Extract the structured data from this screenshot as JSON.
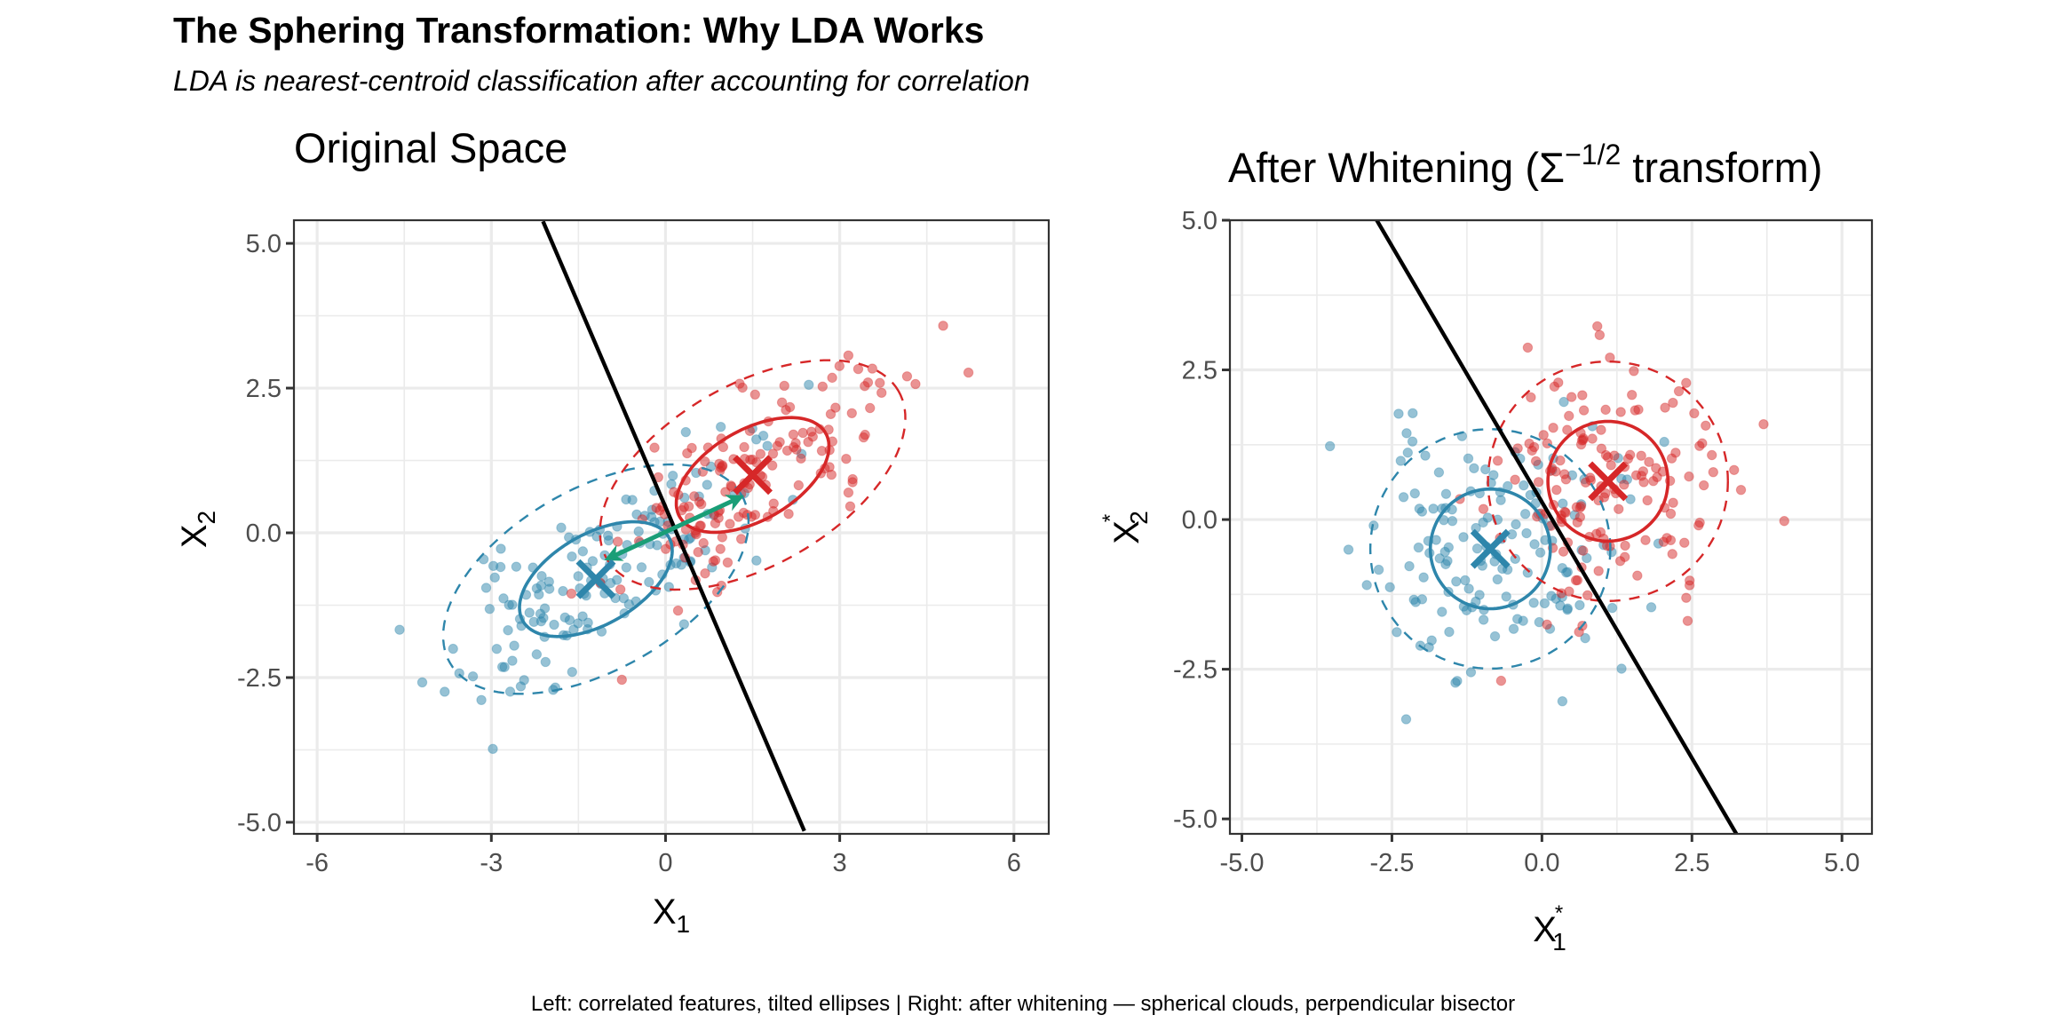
{
  "figure": {
    "title": "The Sphering Transformation: Why LDA Works",
    "subtitle": "LDA is nearest-centroid classification after accounting for correlation",
    "caption": "Left: correlated features, tilted ellipses | Right: after whitening — spherical clouds, perpendicular bisector"
  },
  "colors": {
    "class_a": "#D62728",
    "class_b": "#2E86AB",
    "arrow": "#1A9E77",
    "boundary": "#000000",
    "grid": "#EBEBEB",
    "panel_border": "#333333",
    "tick_text": "#4D4D4D"
  },
  "chart_data": [
    {
      "type": "scatter",
      "panel": "left",
      "title": "Original Space",
      "xlabel": {
        "base": "X",
        "sub": "1"
      },
      "ylabel": {
        "base": "X",
        "sub": "2"
      },
      "xlim": [
        -6.4,
        6.6
      ],
      "ylim": [
        -5.2,
        5.4
      ],
      "xticks": [
        -6,
        -3,
        0,
        3,
        6
      ],
      "xtick_labels": [
        "-6",
        "-3",
        "0",
        "3",
        "6"
      ],
      "yticks": [
        -5,
        -2.5,
        0,
        2.5,
        5
      ],
      "ytick_labels": [
        "-5.0",
        "-2.5",
        "0.0",
        "2.5",
        "5.0"
      ],
      "grid": true,
      "classes": [
        {
          "name": "class_b",
          "color_key": "class_b",
          "n": 150,
          "mean": [
            -1.2,
            -0.8
          ],
          "cov": [
            [
              1.6,
              0.95
            ],
            [
              0.95,
              1.0
            ]
          ],
          "seed": 11
        },
        {
          "name": "class_a",
          "color_key": "class_a",
          "n": 150,
          "mean": [
            1.5,
            1.0
          ],
          "cov": [
            [
              1.6,
              0.95
            ],
            [
              0.95,
              1.0
            ]
          ],
          "seed": 29
        }
      ],
      "centroids": [
        {
          "class": "class_b",
          "x": -1.2,
          "y": -0.8
        },
        {
          "class": "class_a",
          "x": 1.5,
          "y": 1.0
        }
      ],
      "ellipses": [
        {
          "class": "class_b",
          "cx": -1.2,
          "cy": -0.8,
          "a": 1.45,
          "b": 0.78,
          "angle_deg": 30,
          "style": "solid"
        },
        {
          "class": "class_b",
          "cx": -1.2,
          "cy": -0.8,
          "a": 2.9,
          "b": 1.56,
          "angle_deg": 30,
          "style": "dashed"
        },
        {
          "class": "class_a",
          "cx": 1.5,
          "cy": 1.0,
          "a": 1.45,
          "b": 0.78,
          "angle_deg": 30,
          "style": "solid"
        },
        {
          "class": "class_a",
          "cx": 1.5,
          "cy": 1.0,
          "a": 2.9,
          "b": 1.56,
          "angle_deg": 30,
          "style": "dashed"
        }
      ],
      "boundary": {
        "x1": -2.11,
        "y1": 5.38,
        "x2": 2.39,
        "y2": -5.15
      },
      "arrow": {
        "x1": -1.0,
        "y1": -0.45,
        "x2": 1.3,
        "y2": 0.62,
        "double_headed": true
      }
    },
    {
      "type": "scatter",
      "panel": "right",
      "title_main": "After Whitening (Σ",
      "title_sup": "−1/2",
      "title_tail": " transform)",
      "xlabel": {
        "base": "X",
        "sup": "*",
        "sub": "1"
      },
      "ylabel": {
        "base": "X",
        "sup": "*",
        "sub": "2"
      },
      "xlim": [
        -5.2,
        5.5
      ],
      "ylim": [
        -5.25,
        5.0
      ],
      "xticks": [
        -5,
        -2.5,
        0,
        2.5,
        5
      ],
      "xtick_labels": [
        "-5.0",
        "-2.5",
        "0.0",
        "2.5",
        "5.0"
      ],
      "yticks": [
        -5,
        -2.5,
        0,
        2.5,
        5
      ],
      "ytick_labels": [
        "-5.0",
        "-2.5",
        "0.0",
        "2.5",
        "5.0"
      ],
      "grid": true,
      "classes": [
        {
          "name": "class_b",
          "color_key": "class_b",
          "n": 150,
          "mean": [
            -0.86,
            -0.49
          ],
          "cov": [
            [
              1.0,
              0.0
            ],
            [
              0.0,
              1.0
            ]
          ],
          "seed": 11
        },
        {
          "name": "class_a",
          "color_key": "class_a",
          "n": 150,
          "mean": [
            1.1,
            0.64
          ],
          "cov": [
            [
              1.0,
              0.0
            ],
            [
              0.0,
              1.0
            ]
          ],
          "seed": 29
        }
      ],
      "centroids": [
        {
          "class": "class_b",
          "x": -0.86,
          "y": -0.49
        },
        {
          "class": "class_a",
          "x": 1.1,
          "y": 0.64
        }
      ],
      "ellipses": [
        {
          "class": "class_b",
          "cx": -0.86,
          "cy": -0.49,
          "a": 1.0,
          "b": 1.0,
          "angle_deg": 0,
          "style": "solid"
        },
        {
          "class": "class_b",
          "cx": -0.86,
          "cy": -0.49,
          "a": 2.0,
          "b": 2.0,
          "angle_deg": 0,
          "style": "dashed"
        },
        {
          "class": "class_a",
          "cx": 1.1,
          "cy": 0.64,
          "a": 1.0,
          "b": 1.0,
          "angle_deg": 0,
          "style": "solid"
        },
        {
          "class": "class_a",
          "cx": 1.1,
          "cy": 0.64,
          "a": 2.0,
          "b": 2.0,
          "angle_deg": 0,
          "style": "dashed"
        }
      ],
      "boundary": {
        "x1": -2.77,
        "y1": 5.03,
        "x2": 3.24,
        "y2": -5.25
      }
    }
  ]
}
